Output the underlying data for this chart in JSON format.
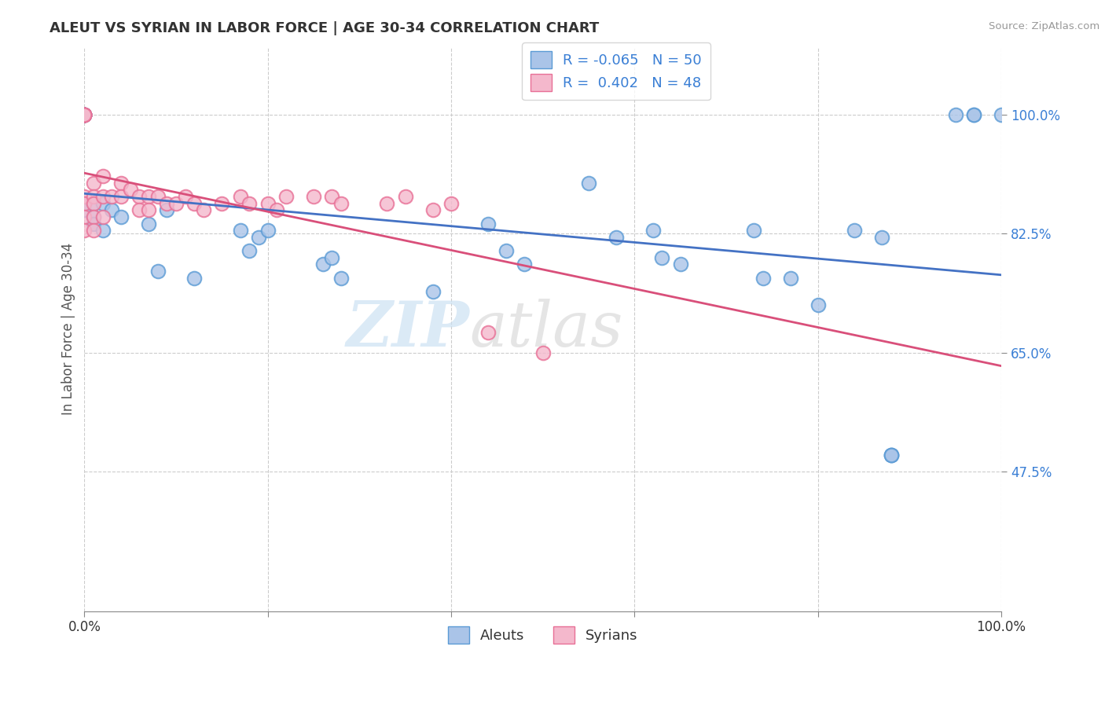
{
  "title": "ALEUT VS SYRIAN IN LABOR FORCE | AGE 30-34 CORRELATION CHART",
  "source": "Source: ZipAtlas.com",
  "ylabel": "In Labor Force | Age 30-34",
  "xlabel": "",
  "xlim": [
    0.0,
    1.0
  ],
  "ylim": [
    0.27,
    1.1
  ],
  "ytick_labels": [
    "47.5%",
    "65.0%",
    "82.5%",
    "100.0%"
  ],
  "ytick_values": [
    0.475,
    0.65,
    0.825,
    1.0
  ],
  "legend_r_aleut": "-0.065",
  "legend_n_aleut": "50",
  "legend_r_syrian": "0.402",
  "legend_n_syrian": "48",
  "aleut_color": "#aac4e8",
  "syrian_color": "#f4b8cc",
  "aleut_edge_color": "#5b9bd5",
  "syrian_edge_color": "#e87096",
  "aleut_line_color": "#4472c4",
  "syrian_line_color": "#d94f7a",
  "background_color": "#ffffff",
  "grid_color": "#cccccc",
  "watermark_zip": "ZIP",
  "watermark_atlas": "atlas",
  "aleuts_x": [
    0.0,
    0.0,
    0.0,
    0.0,
    0.0,
    0.0,
    0.0,
    0.0,
    0.0,
    0.0,
    0.01,
    0.01,
    0.01,
    0.02,
    0.02,
    0.03,
    0.04,
    0.07,
    0.08,
    0.09,
    0.12,
    0.17,
    0.18,
    0.19,
    0.2,
    0.26,
    0.27,
    0.28,
    0.38,
    0.44,
    0.46,
    0.48,
    0.55,
    0.58,
    0.62,
    0.63,
    0.65,
    0.73,
    0.74,
    0.77,
    0.8,
    0.84,
    0.87,
    0.88,
    0.88,
    0.88,
    0.95,
    0.97,
    0.97,
    1.0
  ],
  "aleuts_y": [
    1.0,
    1.0,
    1.0,
    1.0,
    1.0,
    1.0,
    1.0,
    1.0,
    0.87,
    0.86,
    0.87,
    0.85,
    0.84,
    0.87,
    0.83,
    0.86,
    0.85,
    0.84,
    0.77,
    0.86,
    0.76,
    0.83,
    0.8,
    0.82,
    0.83,
    0.78,
    0.79,
    0.76,
    0.74,
    0.84,
    0.8,
    0.78,
    0.9,
    0.82,
    0.83,
    0.79,
    0.78,
    0.83,
    0.76,
    0.76,
    0.72,
    0.83,
    0.82,
    0.5,
    0.5,
    0.5,
    1.0,
    1.0,
    1.0,
    1.0
  ],
  "syrians_x": [
    0.0,
    0.0,
    0.0,
    0.0,
    0.0,
    0.0,
    0.0,
    0.0,
    0.0,
    0.0,
    0.0,
    0.01,
    0.01,
    0.01,
    0.01,
    0.01,
    0.02,
    0.02,
    0.02,
    0.03,
    0.04,
    0.04,
    0.05,
    0.06,
    0.06,
    0.07,
    0.07,
    0.08,
    0.09,
    0.1,
    0.11,
    0.12,
    0.13,
    0.15,
    0.17,
    0.18,
    0.2,
    0.21,
    0.22,
    0.25,
    0.27,
    0.28,
    0.33,
    0.35,
    0.38,
    0.4,
    0.44,
    0.5
  ],
  "syrians_y": [
    1.0,
    1.0,
    1.0,
    1.0,
    1.0,
    1.0,
    1.0,
    0.88,
    0.87,
    0.85,
    0.83,
    0.9,
    0.88,
    0.87,
    0.85,
    0.83,
    0.91,
    0.88,
    0.85,
    0.88,
    0.9,
    0.88,
    0.89,
    0.88,
    0.86,
    0.88,
    0.86,
    0.88,
    0.87,
    0.87,
    0.88,
    0.87,
    0.86,
    0.87,
    0.88,
    0.87,
    0.87,
    0.86,
    0.88,
    0.88,
    0.88,
    0.87,
    0.87,
    0.88,
    0.86,
    0.87,
    0.68,
    0.65
  ]
}
